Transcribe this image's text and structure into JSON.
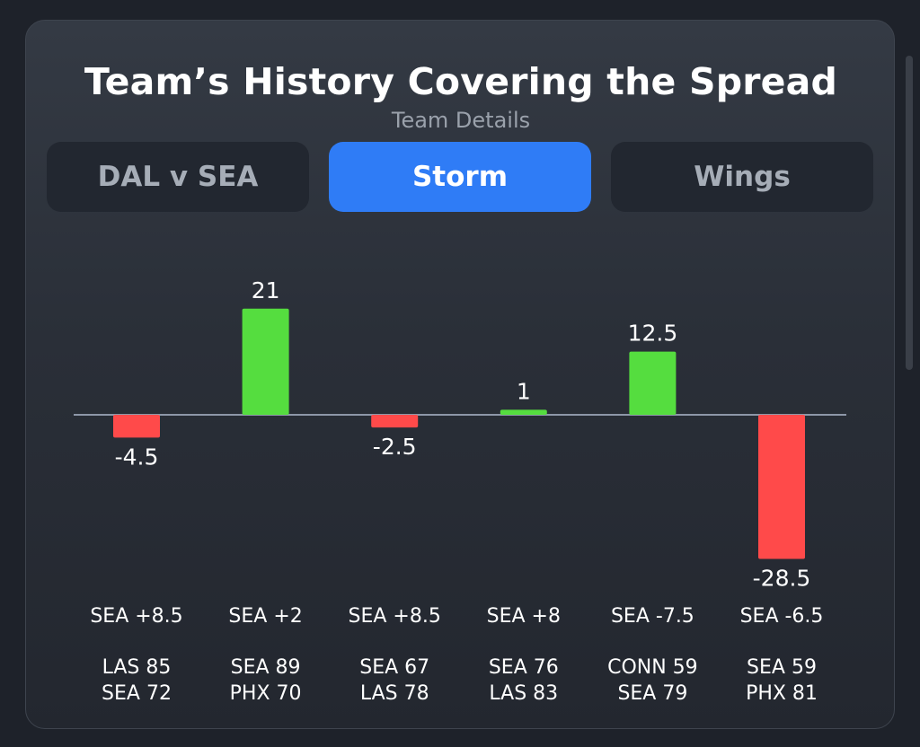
{
  "header": {
    "title": "Team’s History Covering the Spread",
    "subtitle": "Team Details"
  },
  "tabs": [
    {
      "label": "DAL v SEA",
      "active": false
    },
    {
      "label": "Storm",
      "active": true
    },
    {
      "label": "Wings",
      "active": false
    }
  ],
  "colors": {
    "positive": "#55dd3f",
    "negative": "#ff4a4a",
    "baseline": "#8d97a8",
    "label": "#ffffff"
  },
  "chart_data": {
    "type": "bar",
    "title": "",
    "xlabel": "",
    "ylabel": "",
    "ylim": [
      -28.5,
      21
    ],
    "grid": false,
    "categories": [
      "SEA +8.5",
      "SEA +2",
      "SEA +8.5",
      "SEA +8",
      "SEA -7.5",
      "SEA -6.5"
    ],
    "values": [
      -4.5,
      21,
      -2.5,
      1,
      12.5,
      -28.5
    ],
    "value_labels": [
      "-4.5",
      "21",
      "-2.5",
      "1",
      "12.5",
      "-28.5"
    ],
    "scores": [
      [
        "LAS 85",
        "SEA 72"
      ],
      [
        "SEA 89",
        "PHX 70"
      ],
      [
        "SEA 67",
        "LAS 78"
      ],
      [
        "SEA 76",
        "LAS 83"
      ],
      [
        "CONN 59",
        "SEA 79"
      ],
      [
        "SEA 59",
        "PHX 81"
      ]
    ]
  }
}
